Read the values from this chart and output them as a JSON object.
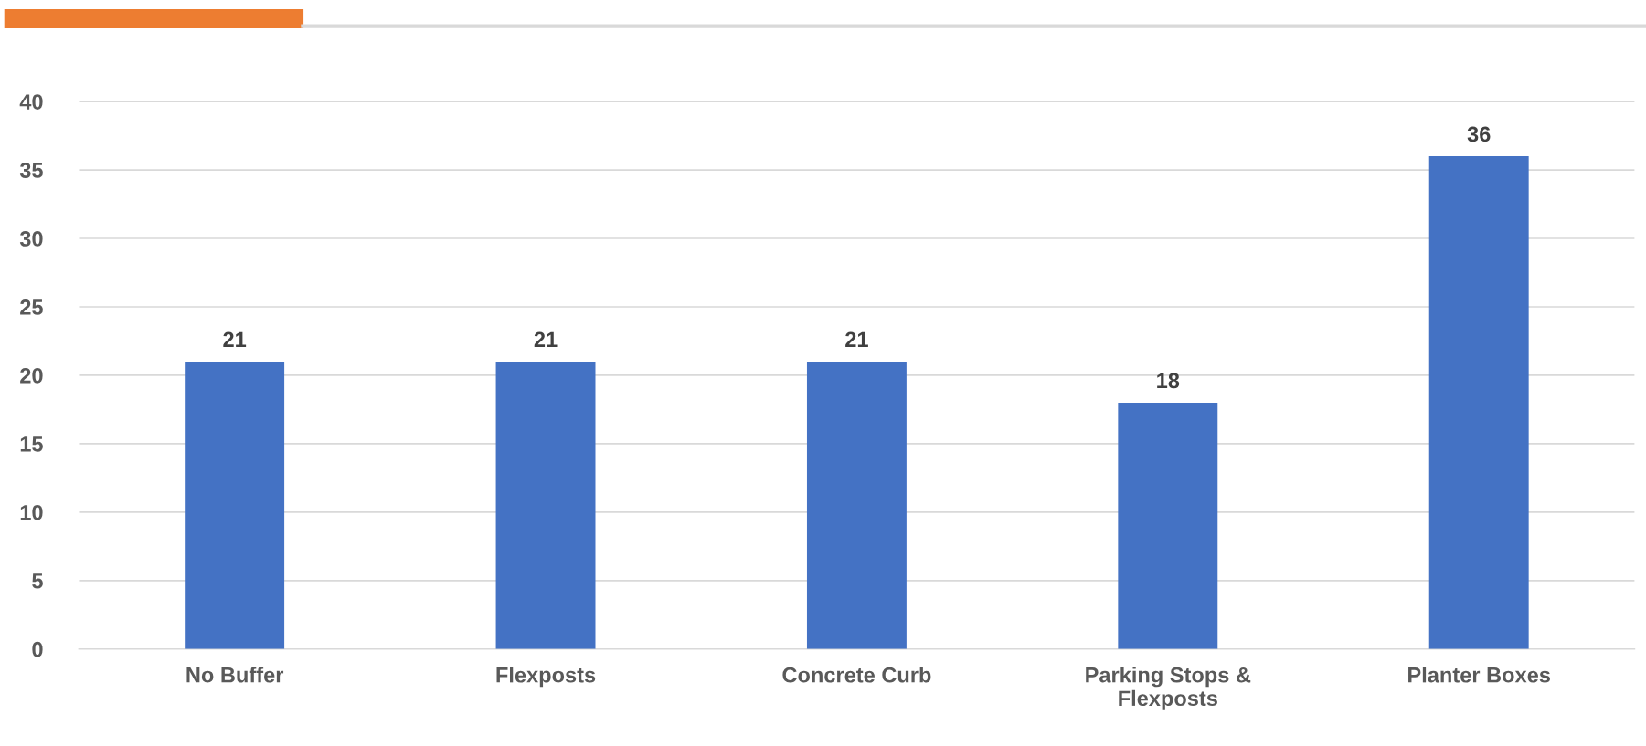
{
  "chart_data": {
    "type": "bar",
    "categories": [
      "No Buffer",
      "Flexposts",
      "Concrete Curb",
      "Parking Stops &\nFlexposts",
      "Planter Boxes"
    ],
    "values": [
      21,
      21,
      21,
      18,
      36
    ],
    "color": "#4472c4",
    "ylim": [
      0,
      40
    ],
    "yticks": [
      0,
      5,
      10,
      15,
      20,
      25,
      30,
      35,
      40
    ],
    "grid": "y",
    "data_labels": true
  }
}
